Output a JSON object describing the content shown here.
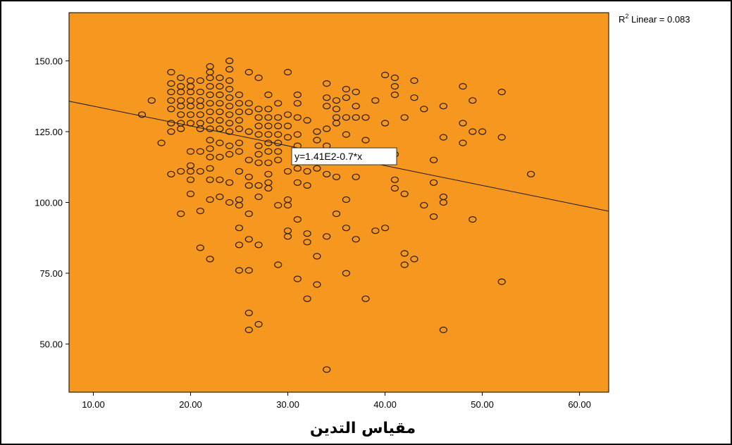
{
  "chart_data": {
    "type": "scatter",
    "xlabel": "مقياس التدين",
    "x_ticks": [
      "10.00",
      "20.00",
      "30.00",
      "40.00",
      "50.00",
      "60.00"
    ],
    "y_ticks": [
      "50.00",
      "75.00",
      "100.00",
      "125.00",
      "150.00"
    ],
    "xlim": [
      7.5,
      63
    ],
    "ylim": [
      33,
      167
    ],
    "r2_label_prefix": "R",
    "r2_label_sup": "2",
    "r2_label_rest": " Linear = 0.083",
    "fit_equation": "y=1.41E2-0.7*x",
    "fit_intercept": 141,
    "fit_slope": -0.7,
    "colors": {
      "plot_bg": "#F6981F",
      "marker": "#2a1a00",
      "line": "#1a1a1a"
    },
    "points": [
      [
        15,
        131
      ],
      [
        16,
        136
      ],
      [
        17,
        121
      ],
      [
        18,
        146
      ],
      [
        18,
        142
      ],
      [
        18,
        139
      ],
      [
        18,
        136
      ],
      [
        18,
        133
      ],
      [
        18,
        128
      ],
      [
        18,
        125
      ],
      [
        18,
        110
      ],
      [
        19,
        144
      ],
      [
        19,
        141
      ],
      [
        19,
        139
      ],
      [
        19,
        136
      ],
      [
        19,
        134
      ],
      [
        19,
        131
      ],
      [
        19,
        128
      ],
      [
        19,
        126
      ],
      [
        19,
        111
      ],
      [
        19,
        96
      ],
      [
        20,
        143
      ],
      [
        20,
        141
      ],
      [
        20,
        139
      ],
      [
        20,
        136
      ],
      [
        20,
        134
      ],
      [
        20,
        131
      ],
      [
        20,
        128
      ],
      [
        20,
        118
      ],
      [
        20,
        113
      ],
      [
        20,
        111
      ],
      [
        20,
        108
      ],
      [
        20,
        103
      ],
      [
        21,
        143
      ],
      [
        21,
        139
      ],
      [
        21,
        136
      ],
      [
        21,
        134
      ],
      [
        21,
        131
      ],
      [
        21,
        128
      ],
      [
        21,
        126
      ],
      [
        21,
        118
      ],
      [
        21,
        111
      ],
      [
        21,
        97
      ],
      [
        21,
        84
      ],
      [
        22,
        148
      ],
      [
        22,
        146
      ],
      [
        22,
        144
      ],
      [
        22,
        141
      ],
      [
        22,
        138
      ],
      [
        22,
        135
      ],
      [
        22,
        132
      ],
      [
        22,
        129
      ],
      [
        22,
        126
      ],
      [
        22,
        122
      ],
      [
        22,
        119
      ],
      [
        22,
        116
      ],
      [
        22,
        112
      ],
      [
        22,
        108
      ],
      [
        22,
        101
      ],
      [
        22,
        80
      ],
      [
        23,
        144
      ],
      [
        23,
        141
      ],
      [
        23,
        138
      ],
      [
        23,
        135
      ],
      [
        23,
        132
      ],
      [
        23,
        129
      ],
      [
        23,
        126
      ],
      [
        23,
        121
      ],
      [
        23,
        116
      ],
      [
        23,
        108
      ],
      [
        23,
        102
      ],
      [
        24,
        150
      ],
      [
        24,
        147
      ],
      [
        24,
        143
      ],
      [
        24,
        140
      ],
      [
        24,
        137
      ],
      [
        24,
        134
      ],
      [
        24,
        131
      ],
      [
        24,
        128
      ],
      [
        24,
        125
      ],
      [
        24,
        120
      ],
      [
        24,
        117
      ],
      [
        24,
        107
      ],
      [
        24,
        100
      ],
      [
        25,
        138
      ],
      [
        25,
        135
      ],
      [
        25,
        132
      ],
      [
        25,
        129
      ],
      [
        25,
        126
      ],
      [
        25,
        121
      ],
      [
        25,
        118
      ],
      [
        25,
        111
      ],
      [
        25,
        101
      ],
      [
        25,
        99
      ],
      [
        25,
        91
      ],
      [
        25,
        85
      ],
      [
        25,
        76
      ],
      [
        26,
        146
      ],
      [
        26,
        135
      ],
      [
        26,
        132
      ],
      [
        26,
        125
      ],
      [
        26,
        115
      ],
      [
        26,
        109
      ],
      [
        26,
        106
      ],
      [
        26,
        96
      ],
      [
        26,
        87
      ],
      [
        26,
        76
      ],
      [
        26,
        61
      ],
      [
        26,
        55
      ],
      [
        27,
        144
      ],
      [
        27,
        133
      ],
      [
        27,
        130
      ],
      [
        27,
        127
      ],
      [
        27,
        124
      ],
      [
        27,
        120
      ],
      [
        27,
        117
      ],
      [
        27,
        114
      ],
      [
        27,
        106
      ],
      [
        27,
        102
      ],
      [
        27,
        85
      ],
      [
        27,
        57
      ],
      [
        28,
        138
      ],
      [
        28,
        133
      ],
      [
        28,
        130
      ],
      [
        28,
        127
      ],
      [
        28,
        124
      ],
      [
        28,
        121
      ],
      [
        28,
        118
      ],
      [
        28,
        114
      ],
      [
        28,
        110
      ],
      [
        28,
        107
      ],
      [
        28,
        105
      ],
      [
        29,
        135
      ],
      [
        29,
        130
      ],
      [
        29,
        127
      ],
      [
        29,
        124
      ],
      [
        29,
        121
      ],
      [
        29,
        118
      ],
      [
        29,
        115
      ],
      [
        29,
        99
      ],
      [
        29,
        78
      ],
      [
        30,
        146
      ],
      [
        30,
        131
      ],
      [
        30,
        127
      ],
      [
        30,
        123
      ],
      [
        30,
        111
      ],
      [
        30,
        101
      ],
      [
        30,
        99
      ],
      [
        30,
        90
      ],
      [
        30,
        88
      ],
      [
        31,
        138
      ],
      [
        31,
        135
      ],
      [
        31,
        130
      ],
      [
        31,
        124
      ],
      [
        31,
        120
      ],
      [
        31,
        116
      ],
      [
        31,
        112
      ],
      [
        31,
        107
      ],
      [
        31,
        94
      ],
      [
        31,
        73
      ],
      [
        32,
        129
      ],
      [
        32,
        118
      ],
      [
        32,
        111
      ],
      [
        32,
        106
      ],
      [
        32,
        89
      ],
      [
        32,
        86
      ],
      [
        32,
        66
      ],
      [
        33,
        125
      ],
      [
        33,
        122
      ],
      [
        33,
        112
      ],
      [
        33,
        81
      ],
      [
        33,
        71
      ],
      [
        34,
        142
      ],
      [
        34,
        137
      ],
      [
        34,
        134
      ],
      [
        34,
        126
      ],
      [
        34,
        120
      ],
      [
        34,
        110
      ],
      [
        34,
        88
      ],
      [
        34,
        41
      ],
      [
        35,
        136
      ],
      [
        35,
        133
      ],
      [
        35,
        130
      ],
      [
        35,
        128
      ],
      [
        35,
        109
      ],
      [
        35,
        96
      ],
      [
        36,
        140
      ],
      [
        36,
        137
      ],
      [
        36,
        130
      ],
      [
        36,
        124
      ],
      [
        36,
        101
      ],
      [
        36,
        91
      ],
      [
        36,
        75
      ],
      [
        37,
        139
      ],
      [
        37,
        134
      ],
      [
        37,
        130
      ],
      [
        37,
        117
      ],
      [
        37,
        109
      ],
      [
        37,
        87
      ],
      [
        38,
        130
      ],
      [
        38,
        122
      ],
      [
        38,
        66
      ],
      [
        39,
        136
      ],
      [
        39,
        117
      ],
      [
        39,
        90
      ],
      [
        40,
        145
      ],
      [
        40,
        128
      ],
      [
        40,
        91
      ],
      [
        41,
        144
      ],
      [
        41,
        141
      ],
      [
        41,
        138
      ],
      [
        41,
        117
      ],
      [
        41,
        108
      ],
      [
        41,
        105
      ],
      [
        42,
        130
      ],
      [
        42,
        103
      ],
      [
        42,
        82
      ],
      [
        42,
        78
      ],
      [
        43,
        143
      ],
      [
        43,
        137
      ],
      [
        43,
        80
      ],
      [
        44,
        133
      ],
      [
        44,
        99
      ],
      [
        45,
        115
      ],
      [
        45,
        107
      ],
      [
        45,
        95
      ],
      [
        46,
        134
      ],
      [
        46,
        123
      ],
      [
        46,
        102
      ],
      [
        46,
        100
      ],
      [
        46,
        55
      ],
      [
        48,
        141
      ],
      [
        48,
        128
      ],
      [
        48,
        121
      ],
      [
        49,
        136
      ],
      [
        49,
        125
      ],
      [
        49,
        94
      ],
      [
        50,
        125
      ],
      [
        52,
        139
      ],
      [
        52,
        123
      ],
      [
        52,
        72
      ],
      [
        55,
        110
      ]
    ]
  }
}
